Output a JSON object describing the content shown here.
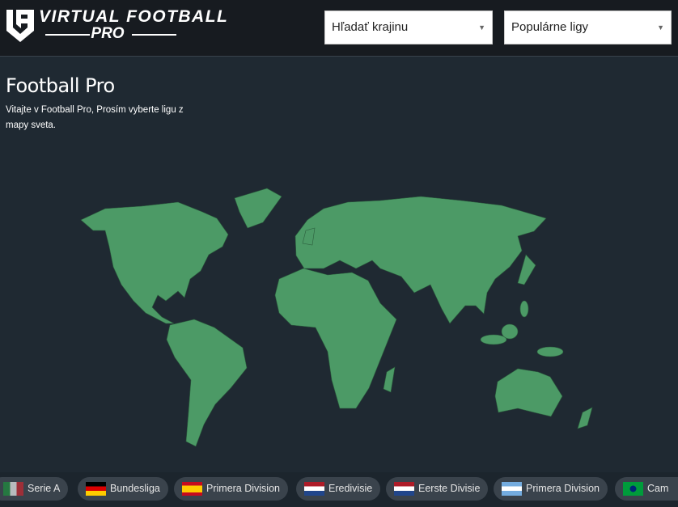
{
  "header": {
    "logo_text": "VIRTUAL FOOTBALL",
    "logo_sub": "PRO",
    "country_search": {
      "value": "Hľadať krajinu"
    },
    "league_select": {
      "value": "Populárne ligy"
    }
  },
  "main": {
    "title": "Football Pro",
    "welcome": "Vitajte v Football Pro, Prosím vyberte ligu z mapy sveta."
  },
  "colors": {
    "map_land": "#4c9a66",
    "background": "#1f2932",
    "header": "#171b20"
  },
  "leagues": [
    {
      "label": "Serie A",
      "flag": "italy"
    },
    {
      "label": "Bundesliga",
      "flag": "germany"
    },
    {
      "label": "Primera Division",
      "flag": "spain"
    },
    {
      "label": "Eredivisie",
      "flag": "netherlands"
    },
    {
      "label": "Eerste Divisie",
      "flag": "netherlands"
    },
    {
      "label": "Primera Division",
      "flag": "argentina"
    },
    {
      "label": "Cam",
      "flag": "brazil"
    }
  ]
}
